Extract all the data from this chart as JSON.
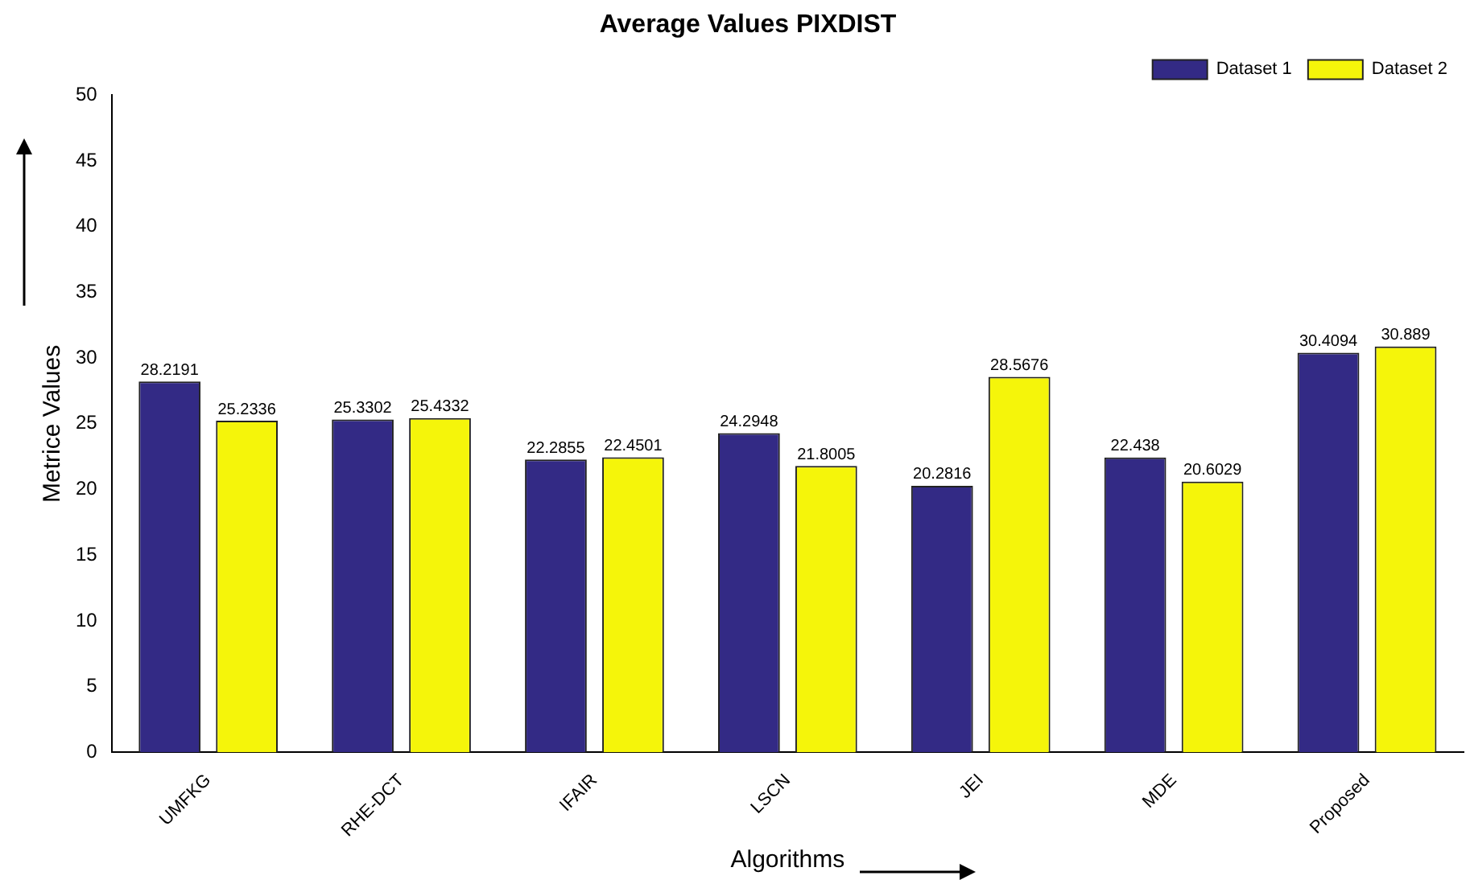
{
  "chart_data": {
    "type": "bar",
    "title": "Average Values PIXDIST",
    "xlabel": "Algorithms",
    "ylabel": "Metrice Values",
    "categories": [
      "UMFKG",
      "RHE-DCT",
      "IFAIR",
      "LSCN",
      "JEI",
      "MDE",
      "Proposed"
    ],
    "series": [
      {
        "name": "Dataset 1",
        "color": "#332a85",
        "values": [
          28.2191,
          25.3302,
          22.2855,
          24.2948,
          20.2816,
          22.438,
          30.4094
        ]
      },
      {
        "name": "Dataset 2",
        "color": "#f5f50a",
        "values": [
          25.2336,
          25.4332,
          22.4501,
          21.8005,
          28.5676,
          20.6029,
          30.889
        ]
      }
    ],
    "ylim": [
      0,
      50
    ],
    "yticks": [
      0,
      5,
      10,
      15,
      20,
      25,
      30,
      35,
      40,
      45,
      50
    ],
    "grid": false,
    "legend": "top right",
    "data_labels": true
  }
}
